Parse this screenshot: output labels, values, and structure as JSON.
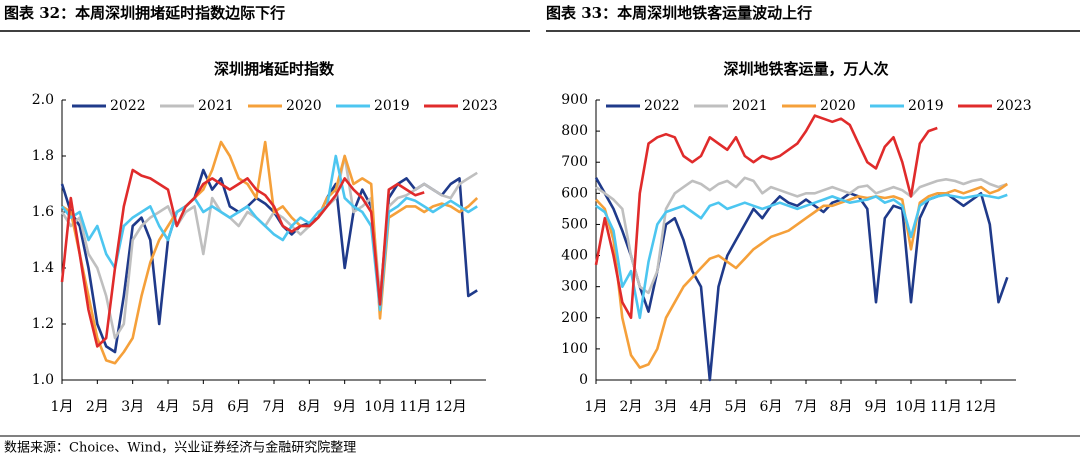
{
  "source": "数据来源：Choice、Wind，兴业证券经济与金融研究院整理",
  "chart_data": [
    {
      "type": "line",
      "caption": "图表 32：本周深圳拥堵延时指数边际下行",
      "title": "深圳拥堵延时指数",
      "x": [
        1,
        1.25,
        1.5,
        1.75,
        2,
        2.25,
        2.5,
        2.75,
        3,
        3.25,
        3.5,
        3.75,
        4,
        4.25,
        4.5,
        4.75,
        5,
        5.25,
        5.5,
        5.75,
        6,
        6.25,
        6.5,
        6.75,
        7,
        7.25,
        7.5,
        7.75,
        8,
        8.25,
        8.5,
        8.75,
        9,
        9.25,
        9.5,
        9.75,
        10,
        10.25,
        10.5,
        10.75,
        11,
        11.25,
        11.5,
        11.75,
        12,
        12.25,
        12.5,
        12.75
      ],
      "xlim": [
        1,
        13
      ],
      "xticks": [
        {
          "value": 1,
          "label": "1月"
        },
        {
          "value": 2,
          "label": "2月"
        },
        {
          "value": 3,
          "label": "3月"
        },
        {
          "value": 4,
          "label": "4月"
        },
        {
          "value": 5,
          "label": "5月"
        },
        {
          "value": 6,
          "label": "6月"
        },
        {
          "value": 7,
          "label": "7月"
        },
        {
          "value": 8,
          "label": "8月"
        },
        {
          "value": 9,
          "label": "9月"
        },
        {
          "value": 10,
          "label": "10月"
        },
        {
          "value": 11,
          "label": "11月"
        },
        {
          "value": 12,
          "label": "12月"
        }
      ],
      "ylim": [
        1.0,
        2.0
      ],
      "yticks": [
        {
          "value": 1.0,
          "label": "1.0"
        },
        1.2,
        1.4,
        1.6,
        1.8,
        {
          "value": 2.0,
          "label": "2.0"
        }
      ],
      "series": [
        {
          "name": "2022",
          "color": "#1f3a8a",
          "values": [
            1.7,
            1.6,
            1.55,
            1.4,
            1.2,
            1.12,
            1.1,
            1.3,
            1.55,
            1.58,
            1.5,
            1.2,
            1.5,
            1.6,
            1.62,
            1.65,
            1.75,
            1.68,
            1.72,
            1.62,
            1.6,
            1.62,
            1.65,
            1.63,
            1.6,
            1.55,
            1.52,
            1.55,
            1.56,
            1.58,
            1.65,
            1.7,
            1.4,
            1.6,
            1.68,
            1.62,
            1.28,
            1.65,
            1.7,
            1.72,
            1.68,
            1.7,
            1.68,
            1.66,
            1.7,
            1.72,
            1.3,
            1.32
          ]
        },
        {
          "name": "2021",
          "color": "#bfbfbf",
          "values": [
            1.6,
            1.55,
            1.58,
            1.45,
            1.4,
            1.3,
            1.15,
            1.2,
            1.5,
            1.55,
            1.58,
            1.6,
            1.62,
            1.55,
            1.6,
            1.62,
            1.45,
            1.65,
            1.6,
            1.58,
            1.55,
            1.6,
            1.58,
            1.55,
            1.6,
            1.58,
            1.55,
            1.52,
            1.55,
            1.58,
            1.62,
            1.65,
            1.8,
            1.6,
            1.62,
            1.65,
            1.3,
            1.62,
            1.65,
            1.66,
            1.68,
            1.7,
            1.68,
            1.66,
            1.65,
            1.7,
            1.72,
            1.74
          ]
        },
        {
          "name": "2020",
          "color": "#f5a03a",
          "values": [
            1.62,
            1.6,
            1.45,
            1.3,
            1.15,
            1.07,
            1.06,
            1.1,
            1.15,
            1.3,
            1.42,
            1.5,
            1.55,
            1.6,
            1.62,
            1.65,
            1.68,
            1.75,
            1.85,
            1.8,
            1.72,
            1.7,
            1.65,
            1.85,
            1.6,
            1.62,
            1.58,
            1.55,
            1.55,
            1.58,
            1.65,
            1.68,
            1.8,
            1.7,
            1.72,
            1.7,
            1.22,
            1.58,
            1.6,
            1.62,
            1.62,
            1.6,
            1.62,
            1.63,
            1.62,
            1.6,
            1.62,
            1.65
          ]
        },
        {
          "name": "2019",
          "color": "#4cc6f0",
          "values": [
            1.62,
            1.58,
            1.6,
            1.5,
            1.55,
            1.45,
            1.4,
            1.55,
            1.58,
            1.6,
            1.62,
            1.55,
            1.5,
            1.6,
            1.62,
            1.65,
            1.6,
            1.62,
            1.6,
            1.58,
            1.6,
            1.62,
            1.58,
            1.55,
            1.52,
            1.5,
            1.55,
            1.58,
            1.56,
            1.6,
            1.62,
            1.8,
            1.65,
            1.62,
            1.6,
            1.55,
            1.25,
            1.6,
            1.62,
            1.65,
            1.64,
            1.62,
            1.6,
            1.62,
            1.64,
            1.62,
            1.6,
            1.62
          ]
        },
        {
          "name": "2023",
          "color": "#e02b2b",
          "values": [
            1.35,
            1.65,
            1.45,
            1.25,
            1.12,
            1.15,
            1.4,
            1.62,
            1.75,
            1.73,
            1.72,
            1.7,
            1.68,
            1.55,
            1.62,
            1.65,
            1.7,
            1.72,
            1.7,
            1.68,
            1.7,
            1.72,
            1.68,
            1.66,
            1.62,
            1.55,
            1.53,
            1.55,
            1.55,
            1.58,
            1.62,
            1.66,
            1.72,
            1.68,
            1.65,
            1.6,
            1.27,
            1.68,
            1.7,
            1.68,
            1.66,
            1.67,
            null,
            null,
            null,
            null,
            null,
            null
          ]
        }
      ]
    },
    {
      "type": "line",
      "caption": "图表 33：本周深圳地铁客运量波动上行",
      "title": "深圳地铁客运量，万人次",
      "x": [
        1,
        1.25,
        1.5,
        1.75,
        2,
        2.25,
        2.5,
        2.75,
        3,
        3.25,
        3.5,
        3.75,
        4,
        4.25,
        4.5,
        4.75,
        5,
        5.25,
        5.5,
        5.75,
        6,
        6.25,
        6.5,
        6.75,
        7,
        7.25,
        7.5,
        7.75,
        8,
        8.25,
        8.5,
        8.75,
        9,
        9.25,
        9.5,
        9.75,
        10,
        10.25,
        10.5,
        10.75,
        11,
        11.25,
        11.5,
        11.75,
        12,
        12.25,
        12.5,
        12.75
      ],
      "xlim": [
        1,
        13
      ],
      "xticks": [
        {
          "value": 1,
          "label": "1月"
        },
        {
          "value": 2,
          "label": "2月"
        },
        {
          "value": 3,
          "label": "3月"
        },
        {
          "value": 4,
          "label": "4月"
        },
        {
          "value": 5,
          "label": "5月"
        },
        {
          "value": 6,
          "label": "6月"
        },
        {
          "value": 7,
          "label": "7月"
        },
        {
          "value": 8,
          "label": "8月"
        },
        {
          "value": 9,
          "label": "9月"
        },
        {
          "value": 10,
          "label": "10月"
        },
        {
          "value": 11,
          "label": "11月"
        },
        {
          "value": 12,
          "label": "12月"
        }
      ],
      "ylim": [
        0,
        900
      ],
      "yticks": [
        0,
        100,
        200,
        300,
        400,
        500,
        600,
        700,
        800,
        900
      ],
      "series": [
        {
          "name": "2022",
          "color": "#1f3a8a",
          "values": [
            650,
            600,
            550,
            480,
            400,
            300,
            220,
            350,
            500,
            520,
            450,
            350,
            300,
            0,
            300,
            400,
            450,
            500,
            550,
            520,
            560,
            590,
            570,
            560,
            580,
            560,
            540,
            570,
            580,
            600,
            590,
            550,
            250,
            520,
            560,
            550,
            250,
            520,
            580,
            590,
            600,
            580,
            560,
            580,
            600,
            500,
            250,
            330
          ]
        },
        {
          "name": "2021",
          "color": "#bfbfbf",
          "values": [
            620,
            600,
            580,
            550,
            400,
            300,
            280,
            350,
            550,
            600,
            620,
            640,
            630,
            610,
            630,
            640,
            620,
            650,
            640,
            600,
            620,
            610,
            600,
            590,
            600,
            600,
            610,
            620,
            610,
            600,
            620,
            625,
            600,
            610,
            620,
            610,
            590,
            620,
            630,
            640,
            645,
            640,
            630,
            640,
            645,
            630,
            620,
            630
          ]
        },
        {
          "name": "2020",
          "color": "#f5a03a",
          "values": [
            580,
            550,
            450,
            200,
            80,
            40,
            50,
            100,
            200,
            250,
            300,
            330,
            360,
            390,
            400,
            380,
            360,
            390,
            420,
            440,
            460,
            470,
            480,
            500,
            520,
            540,
            560,
            560,
            570,
            580,
            590,
            585,
            590,
            585,
            590,
            580,
            420,
            570,
            590,
            600,
            600,
            610,
            600,
            610,
            620,
            600,
            610,
            630
          ]
        },
        {
          "name": "2019",
          "color": "#4cc6f0",
          "values": [
            560,
            540,
            480,
            300,
            350,
            200,
            380,
            500,
            540,
            550,
            560,
            540,
            520,
            560,
            570,
            550,
            560,
            570,
            560,
            550,
            560,
            570,
            560,
            550,
            560,
            570,
            580,
            590,
            580,
            570,
            575,
            580,
            590,
            570,
            580,
            560,
            460,
            560,
            580,
            590,
            595,
            590,
            585,
            590,
            595,
            590,
            585,
            595
          ]
        },
        {
          "name": "2023",
          "color": "#e02b2b",
          "values": [
            370,
            520,
            400,
            250,
            200,
            600,
            760,
            780,
            790,
            780,
            720,
            700,
            720,
            780,
            760,
            740,
            780,
            720,
            700,
            720,
            710,
            720,
            740,
            760,
            800,
            850,
            840,
            830,
            840,
            820,
            760,
            700,
            680,
            750,
            780,
            700,
            590,
            760,
            800,
            810,
            null,
            null,
            null,
            null,
            null,
            null,
            null,
            null
          ]
        }
      ]
    }
  ]
}
